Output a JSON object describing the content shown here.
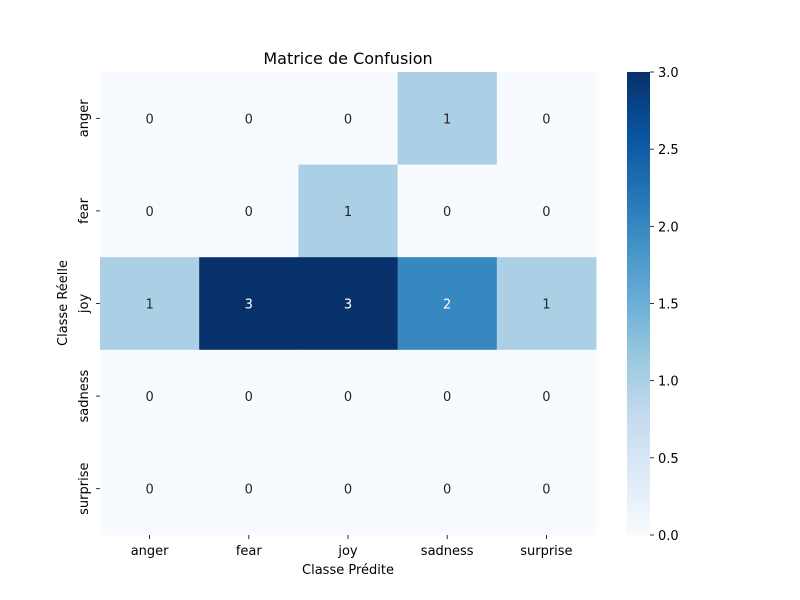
{
  "chart_data": {
    "type": "heatmap",
    "title": "Matrice de Confusion",
    "xlabel": "Classe Prédite",
    "ylabel": "Classe Réelle",
    "x_categories": [
      "anger",
      "fear",
      "joy",
      "sadness",
      "surprise"
    ],
    "y_categories": [
      "anger",
      "fear",
      "joy",
      "sadness",
      "surprise"
    ],
    "values": [
      [
        0,
        0,
        0,
        1,
        0
      ],
      [
        0,
        0,
        1,
        0,
        0
      ],
      [
        1,
        3,
        3,
        2,
        1
      ],
      [
        0,
        0,
        0,
        0,
        0
      ],
      [
        0,
        0,
        0,
        0,
        0
      ]
    ],
    "colorbar": {
      "range": [
        0.0,
        3.0
      ],
      "ticks": [
        "0.0",
        "0.5",
        "1.0",
        "1.5",
        "2.0",
        "2.5",
        "3.0"
      ],
      "colormap": [
        "#f7fbff",
        "#deebf7",
        "#c6dbef",
        "#9ecae1",
        "#6baed6",
        "#4292c6",
        "#2171b5",
        "#08519c",
        "#08306b"
      ]
    },
    "annotations": true,
    "grid": false,
    "legend": "colorbar-right"
  }
}
